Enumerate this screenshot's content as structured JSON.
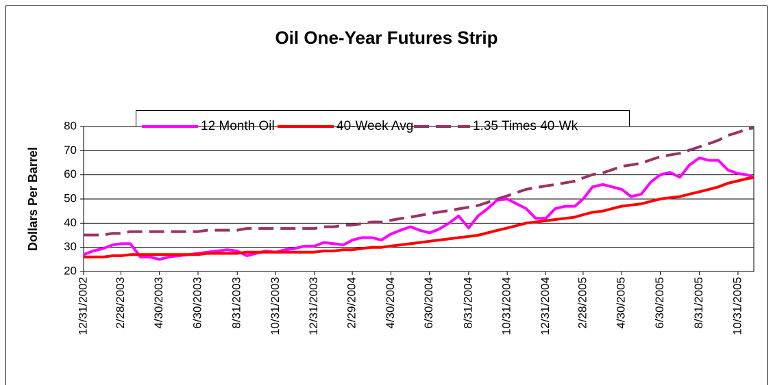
{
  "chart_data": {
    "type": "line",
    "title": "Oil One-Year Futures Strip",
    "y_label": "Dollars Per Barrel",
    "x": [
      "12/31/2002",
      "1/15/2003",
      "1/31/2003",
      "2/15/2003",
      "2/28/2003",
      "3/15/2003",
      "3/31/2003",
      "4/15/2003",
      "4/30/2003",
      "5/15/2003",
      "5/31/2003",
      "6/15/2003",
      "6/30/2003",
      "7/15/2003",
      "7/31/2003",
      "8/15/2003",
      "8/31/2003",
      "9/15/2003",
      "9/30/2003",
      "10/15/2003",
      "10/31/2003",
      "11/15/2003",
      "11/30/2003",
      "12/15/2003",
      "12/31/2003",
      "1/15/2004",
      "1/31/2004",
      "2/15/2004",
      "2/29/2004",
      "3/15/2004",
      "3/31/2004",
      "4/15/2004",
      "4/30/2004",
      "5/15/2004",
      "5/31/2004",
      "6/15/2004",
      "6/30/2004",
      "7/15/2004",
      "7/31/2004",
      "8/15/2004",
      "8/31/2004",
      "9/15/2004",
      "9/30/2004",
      "10/15/2004",
      "10/31/2004",
      "11/15/2004",
      "11/30/2004",
      "12/15/2004",
      "12/31/2004",
      "1/15/2005",
      "1/31/2005",
      "2/15/2005",
      "2/28/2005",
      "3/15/2005",
      "3/31/2005",
      "4/15/2005",
      "4/30/2005",
      "5/15/2005",
      "5/31/2005",
      "6/15/2005",
      "6/30/2005",
      "7/15/2005",
      "7/31/2005",
      "8/15/2005",
      "8/31/2005",
      "9/15/2005",
      "9/30/2005",
      "10/15/2005",
      "10/31/2005",
      "11/15/2005",
      "11/25/2005"
    ],
    "series": [
      {
        "name": "12 Month Oil",
        "color": "#ff00ff",
        "dashed": false,
        "values": [
          27,
          28.5,
          29.5,
          31,
          31.5,
          31.5,
          26,
          26,
          25,
          26,
          26.5,
          27,
          27.5,
          28,
          28.5,
          29,
          28.5,
          26.5,
          27.5,
          28.5,
          28,
          29,
          29.5,
          30.5,
          30.5,
          32,
          31.5,
          31,
          33,
          34,
          34,
          33,
          35.5,
          37,
          38.5,
          37,
          36,
          37.5,
          40,
          43,
          38,
          43,
          46,
          49.5,
          50,
          48,
          46,
          42,
          42,
          46,
          47,
          47,
          50,
          55,
          56,
          55,
          54,
          51,
          52,
          57,
          60,
          61,
          59,
          64,
          67,
          66,
          66,
          62,
          60.5,
          60,
          59
        ]
      },
      {
        "name": "40-Week Avg",
        "color": "#ff0000",
        "dashed": false,
        "values": [
          26,
          26,
          26,
          26.5,
          26.5,
          27,
          27,
          27,
          27,
          27,
          27,
          27,
          27,
          27.5,
          27.5,
          27.5,
          27.5,
          28,
          28,
          28,
          28,
          28,
          28,
          28,
          28,
          28.5,
          28.5,
          29,
          29,
          29.5,
          30,
          30,
          30.5,
          31,
          31.5,
          32,
          32.5,
          33,
          33.5,
          34,
          34.5,
          35,
          36,
          37,
          38,
          39,
          40,
          40.5,
          41,
          41.5,
          42,
          42.5,
          43.5,
          44.5,
          45,
          46,
          47,
          47.5,
          48,
          49,
          50,
          50.5,
          51,
          52,
          53,
          54,
          55,
          56.5,
          57.5,
          58.5,
          58.8
        ]
      },
      {
        "name": "1.35 Times 40-Wk",
        "color": "#993366",
        "dashed": true,
        "values": [
          35.1,
          35.1,
          35.1,
          35.8,
          35.8,
          36.5,
          36.5,
          36.5,
          36.5,
          36.5,
          36.5,
          36.5,
          36.5,
          37.1,
          37.1,
          37.1,
          37.1,
          37.8,
          37.8,
          37.8,
          37.8,
          37.8,
          37.8,
          37.8,
          37.8,
          38.5,
          38.5,
          39.2,
          39.2,
          39.8,
          40.5,
          40.5,
          41.2,
          41.9,
          42.5,
          43.2,
          43.9,
          44.6,
          45.2,
          45.9,
          46.6,
          47.3,
          48.6,
          50,
          51.3,
          52.7,
          54,
          54.7,
          55.4,
          56,
          56.7,
          57.4,
          58.7,
          60.1,
          60.8,
          62.1,
          63.5,
          64.1,
          64.8,
          66.2,
          67.5,
          68.2,
          68.9,
          70.2,
          71.6,
          72.9,
          74.3,
          76.3,
          77.6,
          79,
          79.4
        ]
      }
    ],
    "xlim": [
      "12/31/2002",
      "11/25/2005"
    ],
    "xticks": [
      "12/31/2002",
      "2/28/2003",
      "4/30/2003",
      "6/30/2003",
      "8/31/2003",
      "10/31/2003",
      "12/31/2003",
      "2/29/2004",
      "4/30/2004",
      "6/30/2004",
      "8/31/2004",
      "10/31/2004",
      "12/31/2004",
      "2/28/2005",
      "4/30/2005",
      "6/30/2005",
      "8/31/2005",
      "10/31/2005"
    ],
    "ylim": [
      20,
      80
    ],
    "yticks": [
      20,
      30,
      40,
      50,
      60,
      70,
      80
    ],
    "grid": true
  }
}
